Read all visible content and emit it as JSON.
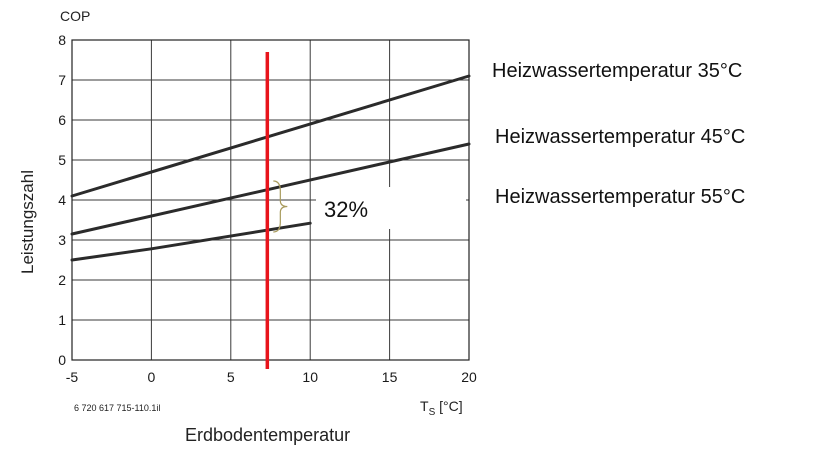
{
  "chart_data": {
    "type": "line",
    "ylabel_top": "COP",
    "ylabel": "Leistungszahl",
    "xlabel": "Erdbodentemperatur",
    "xunit_main": "T",
    "xunit_sub": "S",
    "xunit_tail": " [°C]",
    "xlim": [
      -5,
      20
    ],
    "ylim": [
      0,
      8
    ],
    "xticks": [
      -5,
      0,
      5,
      10,
      15,
      20
    ],
    "yticks": [
      0,
      1,
      2,
      3,
      4,
      5,
      6,
      7,
      8
    ],
    "grid": true,
    "series": [
      {
        "name": "Heizwassertemperatur 35°C",
        "x": [
          -5,
          20
        ],
        "y": [
          4.1,
          7.1
        ]
      },
      {
        "name": "Heizwassertemperatur 45°C",
        "x": [
          -5,
          20
        ],
        "y": [
          3.15,
          5.4
        ]
      },
      {
        "name": "Heizwassertemperatur 55°C",
        "x": [
          -5,
          0,
          10
        ],
        "y": [
          2.5,
          2.78,
          3.42
        ]
      }
    ],
    "marker_x": 7.3,
    "annotation": "32%",
    "footnote": "6 720 617 715-110.1il",
    "colors": {
      "marker": "#e8141b",
      "series": "#2b2b2b",
      "grid": "#3a3a3a"
    }
  }
}
